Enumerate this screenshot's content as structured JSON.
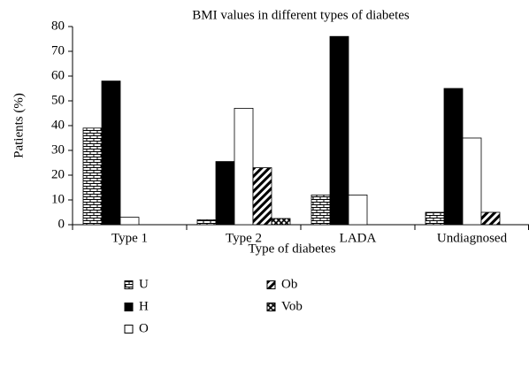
{
  "chart_data": {
    "type": "bar",
    "title": "BMI values in different types of diabetes",
    "x_label": "Type of diabetes",
    "y_label": "Patients (%)",
    "categories": [
      "Type 1",
      "Type 2",
      "LADA",
      "Undiagnosed"
    ],
    "series": [
      {
        "name": "U",
        "color": "#000000",
        "fill": "brick",
        "values": [
          39,
          2,
          12,
          5
        ]
      },
      {
        "name": "H",
        "color": "#000000",
        "fill": "solid",
        "values": [
          58,
          25.5,
          76,
          55
        ]
      },
      {
        "name": "O",
        "color": "#000000",
        "fill": "empty",
        "values": [
          3,
          47,
          12,
          35
        ]
      },
      {
        "name": "Ob",
        "color": "#000000",
        "fill": "hatch",
        "values": [
          0,
          23,
          0,
          5
        ]
      },
      {
        "name": "Vob",
        "color": "#000000",
        "fill": "cross",
        "values": [
          0,
          2.5,
          0,
          0
        ]
      }
    ],
    "ylim": [
      0,
      80
    ],
    "yticks": [
      0,
      10,
      20,
      30,
      40,
      50,
      60,
      70,
      80
    ],
    "grid": false,
    "legend": "bottom"
  }
}
